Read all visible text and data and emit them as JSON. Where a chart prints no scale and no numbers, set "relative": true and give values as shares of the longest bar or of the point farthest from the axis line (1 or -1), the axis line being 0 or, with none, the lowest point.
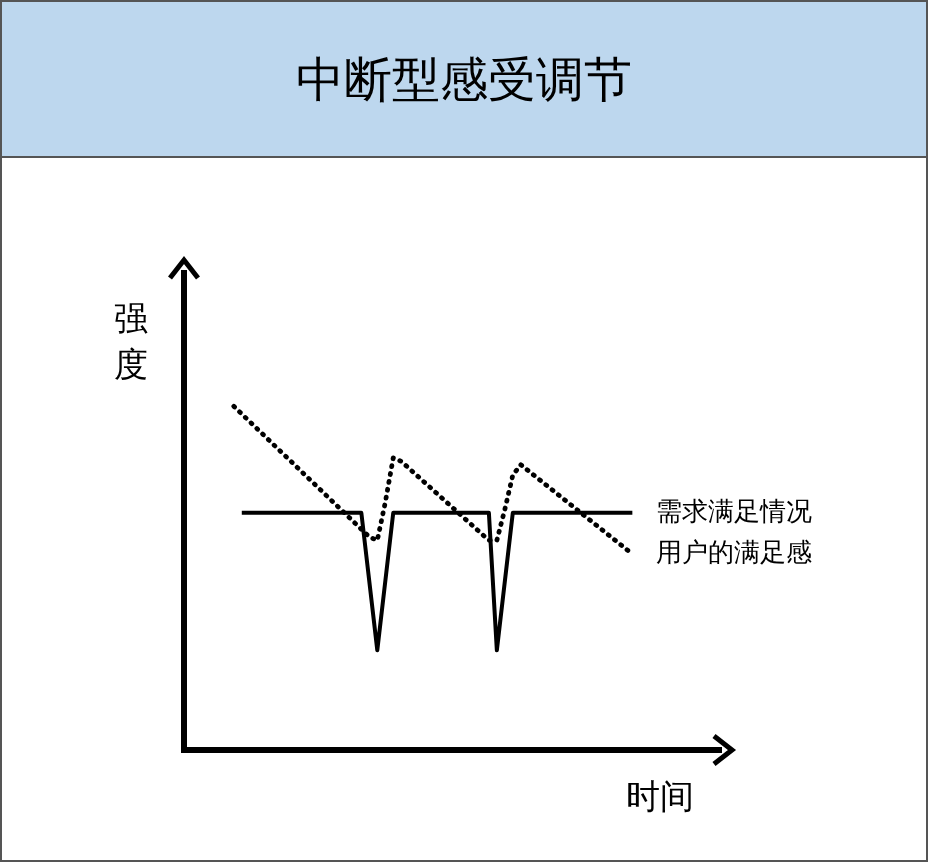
{
  "chart_data": {
    "type": "line",
    "title": "中断型感受调节",
    "xlabel": "时间",
    "ylabel": "强度",
    "relative": true,
    "legend": false,
    "marker": "none",
    "categories": [
      null,
      null,
      null,
      null,
      null,
      null,
      null,
      null,
      null,
      null,
      null,
      null,
      null,
      null,
      null,
      null,
      null,
      null,
      null,
      null,
      null,
      null,
      null,
      null,
      null,
      null,
      null,
      null,
      null,
      null,
      null,
      null,
      null,
      null,
      null,
      null,
      null,
      null,
      null,
      null,
      null,
      null,
      null,
      null,
      null,
      null,
      null,
      null,
      null,
      null,
      null
    ],
    "series": [
      {
        "name": "需求满足情况",
        "color": "#000000",
        "line_style": "solid",
        "values": [
          null,
          0.69,
          null,
          null,
          null,
          null,
          null,
          null,
          null,
          null,
          null,
          null,
          null,
          null,
          null,
          null,
          0.69,
          null,
          0.29,
          null,
          0.69,
          null,
          null,
          null,
          null,
          null,
          null,
          null,
          null,
          null,
          null,
          null,
          0.69,
          0.29,
          null,
          0.69,
          null,
          null,
          null,
          null,
          null,
          null,
          null,
          null,
          null,
          null,
          null,
          null,
          null,
          null,
          0.69
        ]
      },
      {
        "name": "用户的满足感",
        "color": "#000000",
        "line_style": "dotted",
        "values": [
          1.0,
          null,
          null,
          null,
          null,
          null,
          null,
          null,
          null,
          null,
          null,
          null,
          null,
          null,
          null,
          null,
          null,
          0.62,
          0.61,
          0.72,
          0.85,
          0.84,
          null,
          null,
          null,
          null,
          null,
          null,
          null,
          null,
          null,
          null,
          0.61,
          0.61,
          0.7,
          0.8,
          0.83,
          null,
          null,
          null,
          null,
          null,
          null,
          null,
          null,
          null,
          null,
          null,
          null,
          null,
          0.57
        ]
      }
    ]
  }
}
